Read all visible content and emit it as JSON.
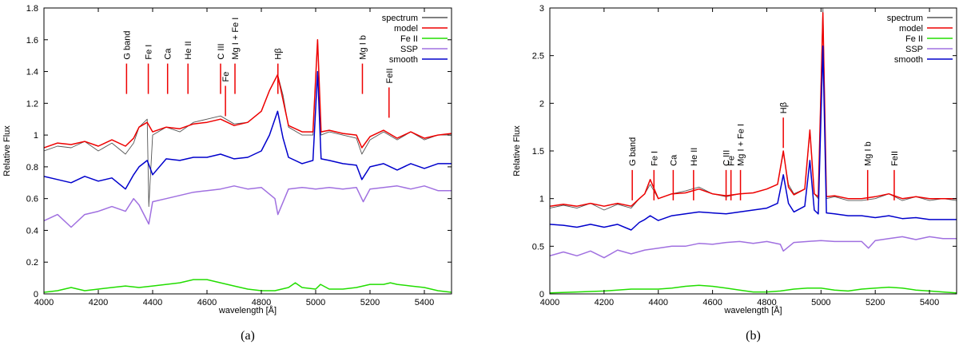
{
  "chart_data": [
    {
      "type": "line",
      "panel_label": "(a)",
      "xlabel": "wavelength [Å]",
      "ylabel": "Relative Flux",
      "xlim": [
        4000,
        5500
      ],
      "ylim": [
        0,
        1.8
      ],
      "xticks": [
        4000,
        4200,
        4400,
        4600,
        4800,
        5000,
        5200,
        5400
      ],
      "yticks": [
        0,
        0.2,
        0.4,
        0.6,
        0.8,
        1,
        1.2,
        1.4,
        1.6,
        1.8
      ],
      "legend_position": "top-right",
      "series": [
        {
          "name": "spectrum",
          "color": "#555555",
          "x": [
            4000,
            4050,
            4100,
            4150,
            4200,
            4250,
            4300,
            4330,
            4350,
            4380,
            4386,
            4400,
            4450,
            4500,
            4550,
            4600,
            4650,
            4700,
            4750,
            4800,
            4830,
            4860,
            4880,
            4900,
            4950,
            4990,
            5007,
            5020,
            5050,
            5100,
            5150,
            5170,
            5200,
            5250,
            5300,
            5350,
            5400,
            5450,
            5500
          ],
          "y": [
            0.9,
            0.93,
            0.92,
            0.96,
            0.9,
            0.95,
            0.88,
            0.95,
            1.05,
            1.1,
            0.55,
            1.0,
            1.05,
            1.02,
            1.08,
            1.1,
            1.12,
            1.07,
            1.08,
            1.15,
            1.28,
            1.38,
            1.25,
            1.05,
            1.0,
            1.0,
            1.6,
            1.0,
            1.02,
            1.0,
            0.98,
            0.88,
            0.97,
            1.02,
            0.97,
            1.02,
            0.97,
            1.0,
            1.0
          ]
        },
        {
          "name": "model",
          "color": "#ee0000",
          "x": [
            4000,
            4050,
            4100,
            4150,
            4200,
            4250,
            4300,
            4330,
            4350,
            4380,
            4400,
            4450,
            4500,
            4550,
            4600,
            4650,
            4700,
            4750,
            4800,
            4830,
            4860,
            4880,
            4900,
            4950,
            4990,
            5007,
            5020,
            5050,
            5100,
            5150,
            5170,
            5200,
            5250,
            5300,
            5350,
            5400,
            5450,
            5500
          ],
          "y": [
            0.92,
            0.95,
            0.94,
            0.96,
            0.93,
            0.97,
            0.93,
            0.98,
            1.05,
            1.08,
            1.02,
            1.05,
            1.04,
            1.07,
            1.08,
            1.1,
            1.06,
            1.08,
            1.15,
            1.28,
            1.38,
            1.22,
            1.06,
            1.02,
            1.02,
            1.6,
            1.02,
            1.03,
            1.01,
            1.0,
            0.92,
            0.99,
            1.03,
            0.98,
            1.02,
            0.98,
            1.0,
            1.01
          ]
        },
        {
          "name": "Fe II",
          "color": "#22dd00",
          "x": [
            4000,
            4050,
            4100,
            4150,
            4200,
            4250,
            4300,
            4350,
            4400,
            4450,
            4500,
            4550,
            4600,
            4650,
            4700,
            4750,
            4800,
            4850,
            4900,
            4925,
            4950,
            5000,
            5018,
            5050,
            5100,
            5150,
            5200,
            5250,
            5275,
            5300,
            5350,
            5400,
            5450,
            5500
          ],
          "y": [
            0.01,
            0.02,
            0.04,
            0.02,
            0.03,
            0.04,
            0.05,
            0.04,
            0.05,
            0.06,
            0.07,
            0.09,
            0.09,
            0.07,
            0.05,
            0.03,
            0.02,
            0.02,
            0.04,
            0.07,
            0.04,
            0.03,
            0.06,
            0.03,
            0.03,
            0.04,
            0.06,
            0.06,
            0.07,
            0.06,
            0.05,
            0.04,
            0.02,
            0.01
          ]
        },
        {
          "name": "SSP",
          "color": "#a070e0",
          "x": [
            4000,
            4050,
            4100,
            4150,
            4200,
            4250,
            4300,
            4330,
            4350,
            4386,
            4400,
            4450,
            4500,
            4550,
            4600,
            4650,
            4700,
            4750,
            4800,
            4850,
            4861,
            4900,
            4950,
            5000,
            5050,
            5100,
            5150,
            5175,
            5200,
            5250,
            5300,
            5350,
            5400,
            5450,
            5500
          ],
          "y": [
            0.46,
            0.5,
            0.42,
            0.5,
            0.52,
            0.55,
            0.52,
            0.6,
            0.56,
            0.44,
            0.58,
            0.6,
            0.62,
            0.64,
            0.65,
            0.66,
            0.68,
            0.66,
            0.67,
            0.6,
            0.5,
            0.66,
            0.67,
            0.66,
            0.67,
            0.66,
            0.67,
            0.58,
            0.66,
            0.67,
            0.68,
            0.66,
            0.68,
            0.65,
            0.65
          ]
        },
        {
          "name": "smooth",
          "color": "#0000cc",
          "x": [
            4000,
            4050,
            4100,
            4150,
            4200,
            4250,
            4300,
            4330,
            4350,
            4380,
            4400,
            4450,
            4500,
            4550,
            4600,
            4650,
            4700,
            4750,
            4800,
            4830,
            4860,
            4880,
            4900,
            4950,
            4990,
            5007,
            5020,
            5050,
            5100,
            5150,
            5170,
            5200,
            5250,
            5300,
            5350,
            5400,
            5450,
            5500
          ],
          "y": [
            0.74,
            0.72,
            0.7,
            0.74,
            0.71,
            0.73,
            0.66,
            0.75,
            0.8,
            0.84,
            0.75,
            0.85,
            0.84,
            0.86,
            0.86,
            0.88,
            0.85,
            0.86,
            0.9,
            1.0,
            1.15,
            0.98,
            0.86,
            0.82,
            0.84,
            1.4,
            0.85,
            0.84,
            0.82,
            0.81,
            0.72,
            0.8,
            0.82,
            0.78,
            0.82,
            0.79,
            0.82,
            0.82
          ]
        }
      ],
      "line_markers": [
        {
          "label": "G band",
          "x": 4304,
          "y": 1.45
        },
        {
          "label": "Fe I",
          "x": 4384,
          "y": 1.45
        },
        {
          "label": "Ca",
          "x": 4455,
          "y": 1.45
        },
        {
          "label": "He II",
          "x": 4530,
          "y": 1.45
        },
        {
          "label": "C III",
          "x": 4650,
          "y": 1.45
        },
        {
          "label": "Fe",
          "x": 4668,
          "y": 1.31
        },
        {
          "label": "Mg I + Fe I",
          "x": 4703,
          "y": 1.45
        },
        {
          "label": "Hβ",
          "x": 4861,
          "y": 1.45
        },
        {
          "label": "Mg I b",
          "x": 5172,
          "y": 1.45
        },
        {
          "label": "FeII",
          "x": 5270,
          "y": 1.3
        }
      ]
    },
    {
      "type": "line",
      "panel_label": "(b)",
      "xlabel": "wavelength [Å]",
      "ylabel": "Relative Flux",
      "xlim": [
        4000,
        5500
      ],
      "ylim": [
        0,
        3
      ],
      "xticks": [
        4000,
        4200,
        4400,
        4600,
        4800,
        5000,
        5200,
        5400
      ],
      "yticks": [
        0,
        0.5,
        1,
        1.5,
        2,
        2.5,
        3
      ],
      "legend_position": "top-right",
      "series": [
        {
          "name": "spectrum",
          "color": "#555555",
          "x": [
            4000,
            4050,
            4100,
            4150,
            4200,
            4250,
            4300,
            4330,
            4350,
            4370,
            4400,
            4450,
            4500,
            4550,
            4600,
            4650,
            4700,
            4750,
            4800,
            4840,
            4861,
            4880,
            4900,
            4940,
            4959,
            4975,
            4990,
            5007,
            5020,
            5050,
            5100,
            5150,
            5200,
            5250,
            5300,
            5350,
            5400,
            5450,
            5500
          ],
          "y": [
            0.9,
            0.93,
            0.9,
            0.95,
            0.88,
            0.94,
            0.9,
            1.0,
            1.05,
            1.15,
            1.0,
            1.05,
            1.08,
            1.12,
            1.05,
            1.02,
            1.05,
            1.06,
            1.1,
            1.15,
            1.48,
            1.15,
            1.05,
            1.1,
            1.7,
            1.05,
            1.0,
            3.0,
            1.0,
            1.02,
            0.98,
            0.98,
            1.0,
            1.05,
            0.98,
            1.02,
            0.98,
            1.0,
            0.98
          ]
        },
        {
          "name": "model",
          "color": "#ee0000",
          "x": [
            4000,
            4050,
            4100,
            4150,
            4200,
            4250,
            4300,
            4330,
            4350,
            4370,
            4400,
            4450,
            4500,
            4550,
            4600,
            4650,
            4700,
            4750,
            4800,
            4840,
            4861,
            4880,
            4900,
            4940,
            4959,
            4975,
            4990,
            5007,
            5020,
            5050,
            5100,
            5150,
            5200,
            5250,
            5300,
            5350,
            5400,
            5450,
            5500
          ],
          "y": [
            0.92,
            0.94,
            0.92,
            0.95,
            0.92,
            0.95,
            0.92,
            1.0,
            1.05,
            1.2,
            1.0,
            1.05,
            1.06,
            1.1,
            1.05,
            1.03,
            1.05,
            1.06,
            1.1,
            1.15,
            1.5,
            1.12,
            1.04,
            1.1,
            1.72,
            1.05,
            1.02,
            2.95,
            1.02,
            1.03,
            1.0,
            1.0,
            1.02,
            1.05,
            1.0,
            1.02,
            1.0,
            1.0,
            1.0
          ]
        },
        {
          "name": "Fe II",
          "color": "#22dd00",
          "x": [
            4000,
            4100,
            4200,
            4300,
            4400,
            4450,
            4500,
            4550,
            4600,
            4650,
            4700,
            4750,
            4800,
            4850,
            4900,
            4950,
            5000,
            5050,
            5100,
            5150,
            5200,
            5250,
            5300,
            5350,
            5400,
            5450,
            5500
          ],
          "y": [
            0.01,
            0.02,
            0.03,
            0.05,
            0.05,
            0.06,
            0.08,
            0.09,
            0.08,
            0.06,
            0.04,
            0.02,
            0.02,
            0.03,
            0.05,
            0.06,
            0.06,
            0.04,
            0.03,
            0.05,
            0.06,
            0.07,
            0.06,
            0.04,
            0.03,
            0.02,
            0.01
          ]
        },
        {
          "name": "SSP",
          "color": "#a070e0",
          "x": [
            4000,
            4050,
            4100,
            4150,
            4200,
            4250,
            4300,
            4350,
            4400,
            4450,
            4500,
            4550,
            4600,
            4650,
            4700,
            4750,
            4800,
            4850,
            4861,
            4900,
            4950,
            5000,
            5050,
            5100,
            5150,
            5175,
            5200,
            5250,
            5300,
            5350,
            5400,
            5450,
            5500
          ],
          "y": [
            0.4,
            0.44,
            0.4,
            0.45,
            0.38,
            0.46,
            0.42,
            0.46,
            0.48,
            0.5,
            0.5,
            0.53,
            0.52,
            0.54,
            0.55,
            0.53,
            0.55,
            0.52,
            0.45,
            0.54,
            0.55,
            0.56,
            0.55,
            0.55,
            0.55,
            0.48,
            0.56,
            0.58,
            0.6,
            0.57,
            0.6,
            0.58,
            0.58
          ]
        },
        {
          "name": "smooth",
          "color": "#0000cc",
          "x": [
            4000,
            4050,
            4100,
            4150,
            4200,
            4250,
            4300,
            4330,
            4350,
            4370,
            4400,
            4450,
            4500,
            4550,
            4600,
            4650,
            4700,
            4750,
            4800,
            4840,
            4861,
            4880,
            4900,
            4940,
            4959,
            4975,
            4990,
            5007,
            5020,
            5050,
            5100,
            5150,
            5200,
            5250,
            5300,
            5350,
            5400,
            5450,
            5500
          ],
          "y": [
            0.73,
            0.72,
            0.7,
            0.73,
            0.7,
            0.73,
            0.67,
            0.75,
            0.78,
            0.82,
            0.77,
            0.82,
            0.84,
            0.86,
            0.85,
            0.84,
            0.86,
            0.88,
            0.9,
            0.95,
            1.25,
            0.95,
            0.86,
            0.92,
            1.4,
            0.88,
            0.84,
            2.6,
            0.85,
            0.84,
            0.82,
            0.82,
            0.8,
            0.82,
            0.79,
            0.8,
            0.78,
            0.78,
            0.78
          ]
        }
      ],
      "line_markers": [
        {
          "label": "G band",
          "x": 4304,
          "y": 1.3
        },
        {
          "label": "Fe I",
          "x": 4384,
          "y": 1.3
        },
        {
          "label": "Ca",
          "x": 4455,
          "y": 1.3
        },
        {
          "label": "He II",
          "x": 4530,
          "y": 1.3
        },
        {
          "label": "C III",
          "x": 4650,
          "y": 1.3
        },
        {
          "label": "Fe",
          "x": 4668,
          "y": 1.3
        },
        {
          "label": "Mg I + Fe I",
          "x": 4703,
          "y": 1.3
        },
        {
          "label": "Hβ",
          "x": 4861,
          "y": 1.85
        },
        {
          "label": "Mg I b",
          "x": 5172,
          "y": 1.3
        },
        {
          "label": "FeII",
          "x": 5270,
          "y": 1.3
        }
      ]
    }
  ]
}
